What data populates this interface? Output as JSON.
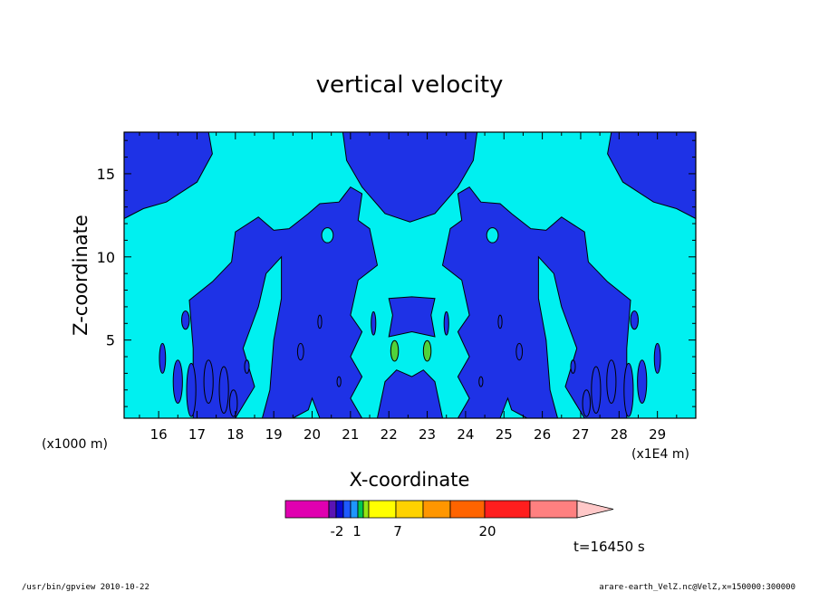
{
  "chart_data": {
    "type": "heatmap",
    "title": "vertical velocity",
    "xlabel": "X-coordinate",
    "ylabel": "Z-coordinate",
    "x_scale_note": "(x1E4 m)",
    "x_scale_note_secondary": "(x1000 m)",
    "xlim": [
      15.1,
      30.0
    ],
    "ylim": [
      0.3,
      17.5
    ],
    "x_ticks": [
      "16",
      "17",
      "18",
      "19",
      "20",
      "21",
      "22",
      "23",
      "24",
      "25",
      "26",
      "27",
      "28",
      "29"
    ],
    "y_ticks": [
      "5",
      "10",
      "15"
    ],
    "colorbar": {
      "labels": [
        "-2",
        "1",
        "7",
        "20"
      ],
      "colors": [
        "#e000b0",
        "#5a14b4",
        "#0a0ad2",
        "#1e5aff",
        "#1e96ff",
        "#00c850",
        "#96e614",
        "#ffff00",
        "#ffd200",
        "#ff9600",
        "#ff6400",
        "#ff1e1e",
        "#ff8080",
        "#ffc8c8"
      ]
    },
    "field_colors": {
      "positive_weak": "#00f0f0",
      "negative": "#1e32e6",
      "positive_strong": "#50d23c"
    }
  },
  "time_label": "t=16450 s",
  "footer_left": "/usr/bin/gpview   2010-10-22",
  "footer_right": "arare-earth_VelZ.nc@VelZ,x=150000:300000"
}
